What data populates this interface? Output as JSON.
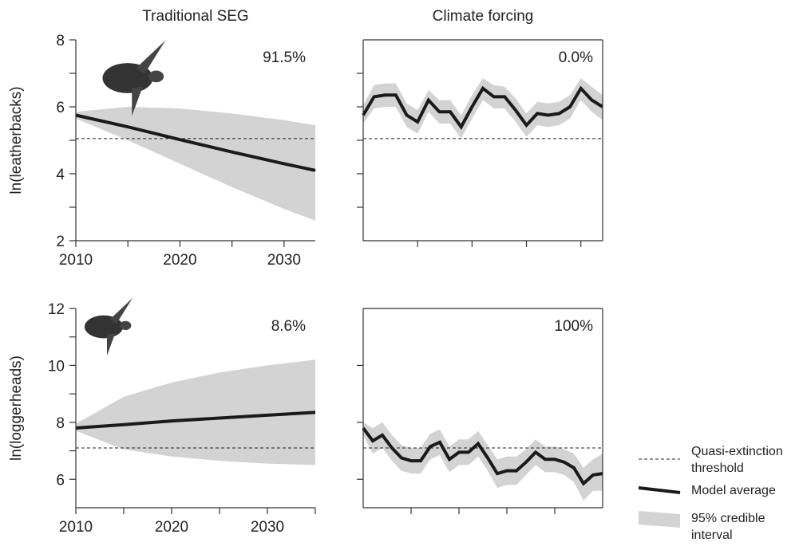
{
  "chart_data": [
    {
      "type": "band-line",
      "title": "Traditional SEG",
      "y_label": "ln(leatherbacks)",
      "annotation": "91.5%",
      "x": [
        2010,
        2015,
        2020,
        2025,
        2030,
        2033
      ],
      "mean": [
        5.75,
        5.4,
        5.02,
        4.65,
        4.3,
        4.1
      ],
      "upper": [
        5.85,
        6.0,
        5.95,
        5.8,
        5.6,
        5.45
      ],
      "lower": [
        5.65,
        5.0,
        4.3,
        3.6,
        2.95,
        2.6
      ],
      "threshold": 5.05,
      "xlim": [
        2010,
        2033
      ],
      "xticks": [
        2010,
        2020,
        2030
      ],
      "xminor": [
        2015,
        2025
      ],
      "ylim": [
        2,
        8
      ],
      "yticks": [
        2,
        4,
        6,
        8
      ],
      "yminor": [
        3,
        5,
        7
      ],
      "tick_labels": true,
      "frame": false
    },
    {
      "type": "band-line",
      "title": "Climate forcing",
      "annotation": "0.0%",
      "x": [
        2010,
        2011,
        2012,
        2013,
        2014,
        2015,
        2016,
        2017,
        2018,
        2019,
        2020,
        2021,
        2022,
        2023,
        2024,
        2025,
        2026,
        2027,
        2028,
        2029,
        2030,
        2031,
        2032
      ],
      "mean": [
        5.75,
        6.3,
        6.35,
        6.35,
        5.75,
        5.55,
        6.2,
        5.85,
        5.85,
        5.4,
        6.0,
        6.55,
        6.3,
        6.3,
        5.9,
        5.45,
        5.8,
        5.75,
        5.8,
        6.0,
        6.55,
        6.2,
        6.0
      ],
      "upper": [
        6.05,
        6.65,
        6.7,
        6.7,
        6.1,
        5.9,
        6.5,
        6.2,
        6.2,
        5.75,
        6.35,
        6.85,
        6.65,
        6.6,
        6.25,
        5.8,
        6.15,
        6.1,
        6.15,
        6.35,
        6.85,
        6.6,
        6.35
      ],
      "lower": [
        5.5,
        5.95,
        6.0,
        6.0,
        5.4,
        5.2,
        5.85,
        5.5,
        5.5,
        5.05,
        5.65,
        6.2,
        5.95,
        5.95,
        5.55,
        5.1,
        5.45,
        5.4,
        5.45,
        5.65,
        6.2,
        5.85,
        5.6
      ],
      "threshold": 5.05,
      "xlim": [
        2010,
        2032
      ],
      "xticks": [
        2015,
        2020,
        2025,
        2030
      ],
      "ylim": [
        2,
        8
      ],
      "yticks": [
        3,
        4,
        5,
        6,
        7
      ],
      "tick_labels": false,
      "frame": true
    },
    {
      "type": "band-line",
      "y_label": "ln(loggerheads)",
      "annotation": "8.6%",
      "x": [
        2010,
        2015,
        2020,
        2025,
        2030,
        2035
      ],
      "mean": [
        7.8,
        7.92,
        8.05,
        8.15,
        8.25,
        8.35
      ],
      "upper": [
        7.95,
        8.9,
        9.4,
        9.75,
        10.0,
        10.2
      ],
      "lower": [
        7.7,
        7.05,
        6.8,
        6.65,
        6.55,
        6.5
      ],
      "threshold": 7.1,
      "xlim": [
        2010,
        2035
      ],
      "xticks": [
        2010,
        2020,
        2030
      ],
      "xminor": [
        2015,
        2025,
        2035
      ],
      "ylim": [
        5,
        12
      ],
      "yticks": [
        6,
        8,
        10,
        12
      ],
      "yminor": [
        7,
        9,
        11
      ],
      "tick_labels": true,
      "frame": false
    },
    {
      "type": "band-line",
      "annotation": "100%",
      "x": [
        2010,
        2011,
        2012,
        2013,
        2014,
        2015,
        2016,
        2017,
        2018,
        2019,
        2020,
        2021,
        2022,
        2023,
        2024,
        2025,
        2026,
        2027,
        2028,
        2029,
        2030,
        2031,
        2032,
        2033,
        2034,
        2035
      ],
      "mean": [
        7.8,
        7.35,
        7.55,
        7.1,
        6.75,
        6.65,
        6.65,
        7.15,
        7.3,
        6.7,
        6.95,
        6.95,
        7.25,
        6.75,
        6.2,
        6.3,
        6.3,
        6.6,
        6.95,
        6.7,
        6.7,
        6.6,
        6.4,
        5.85,
        6.15,
        6.2
      ],
      "upper": [
        8.0,
        7.8,
        8.0,
        7.55,
        7.2,
        7.1,
        7.1,
        7.6,
        7.75,
        7.15,
        7.4,
        7.4,
        7.7,
        7.2,
        6.7,
        6.8,
        6.8,
        7.05,
        7.4,
        7.15,
        7.15,
        7.05,
        6.9,
        6.4,
        6.7,
        6.9
      ],
      "lower": [
        7.55,
        6.9,
        7.1,
        6.65,
        6.3,
        6.2,
        6.2,
        6.7,
        6.85,
        6.25,
        6.5,
        6.5,
        6.8,
        6.3,
        5.7,
        5.8,
        5.8,
        6.15,
        6.5,
        6.25,
        6.25,
        6.15,
        5.9,
        5.25,
        5.6,
        5.6
      ],
      "threshold": 7.1,
      "xlim": [
        2010,
        2035
      ],
      "xticks": [
        2015,
        2020,
        2025,
        2030
      ],
      "ylim": [
        5,
        12
      ],
      "yticks": [
        6,
        8,
        10
      ],
      "tick_labels": false,
      "frame": true
    }
  ],
  "legend": {
    "threshold": "Quasi-extinction threshold",
    "mean": "Model average",
    "interval": "95% credible interval",
    "line_color": "#1a1a1a",
    "band_color": "#d3d3d3"
  }
}
